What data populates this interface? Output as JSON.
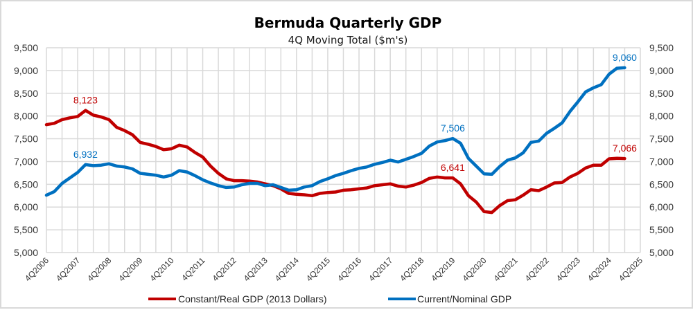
{
  "chart_data": {
    "type": "line",
    "title": "Bermuda Quarterly GDP",
    "subtitle": "4Q Moving Total ($m's)",
    "xlabel": "",
    "ylabel": "",
    "ylim": [
      5000,
      9500
    ],
    "yticks": [
      "5,000",
      "5,500",
      "6,000",
      "6,500",
      "7,000",
      "7,500",
      "8,000",
      "8,500",
      "9,000",
      "9,500"
    ],
    "ytick_values": [
      5000,
      5500,
      6000,
      6500,
      7000,
      7500,
      8000,
      8500,
      9000,
      9500
    ],
    "xtick_labels": [
      "4Q2006",
      "4Q2007",
      "4Q2008",
      "4Q2009",
      "4Q2010",
      "4Q2011",
      "4Q2012",
      "4Q2013",
      "4Q2014",
      "4Q2015",
      "4Q2016",
      "4Q2017",
      "4Q2018",
      "4Q2019",
      "4Q2020",
      "4Q2021",
      "4Q2022",
      "4Q2023",
      "4Q2024",
      "4Q2025"
    ],
    "grid": true,
    "legend_position": "bottom",
    "series": [
      {
        "name": "Constant/Real GDP (2013 Dollars)",
        "color": "#c00000",
        "values": [
          7810,
          7840,
          7920,
          7960,
          7990,
          8123,
          8020,
          7980,
          7920,
          7750,
          7680,
          7590,
          7420,
          7380,
          7330,
          7260,
          7280,
          7360,
          7320,
          7200,
          7100,
          6900,
          6740,
          6620,
          6580,
          6580,
          6570,
          6550,
          6510,
          6470,
          6400,
          6300,
          6280,
          6270,
          6250,
          6300,
          6320,
          6330,
          6370,
          6380,
          6400,
          6420,
          6470,
          6490,
          6510,
          6460,
          6440,
          6480,
          6540,
          6630,
          6660,
          6641,
          6641,
          6510,
          6250,
          6110,
          5900,
          5880,
          6030,
          6140,
          6160,
          6260,
          6380,
          6360,
          6440,
          6530,
          6540,
          6660,
          6740,
          6860,
          6920,
          6920,
          7060,
          7070,
          7066
        ],
        "labels": [
          {
            "index": 5,
            "text": "8,123"
          },
          {
            "index": 52,
            "text": "6,641"
          },
          {
            "index": 74,
            "text": "7,066"
          }
        ]
      },
      {
        "name": "Current/Nominal GDP",
        "color": "#0070c0",
        "values": [
          6260,
          6340,
          6520,
          6640,
          6760,
          6932,
          6910,
          6920,
          6950,
          6900,
          6880,
          6840,
          6740,
          6720,
          6700,
          6660,
          6700,
          6800,
          6770,
          6690,
          6600,
          6530,
          6470,
          6430,
          6440,
          6490,
          6520,
          6520,
          6470,
          6490,
          6430,
          6370,
          6380,
          6440,
          6470,
          6560,
          6620,
          6690,
          6740,
          6800,
          6850,
          6880,
          6940,
          6980,
          7030,
          6990,
          7050,
          7110,
          7180,
          7340,
          7430,
          7460,
          7506,
          7400,
          7070,
          6900,
          6730,
          6720,
          6890,
          7030,
          7080,
          7190,
          7420,
          7450,
          7620,
          7730,
          7850,
          8100,
          8310,
          8530,
          8620,
          8690,
          8920,
          9050,
          9060
        ],
        "labels": [
          {
            "index": 5,
            "text": "6,932"
          },
          {
            "index": 52,
            "text": "7,506"
          },
          {
            "index": 74,
            "text": "9,060"
          }
        ]
      }
    ]
  }
}
